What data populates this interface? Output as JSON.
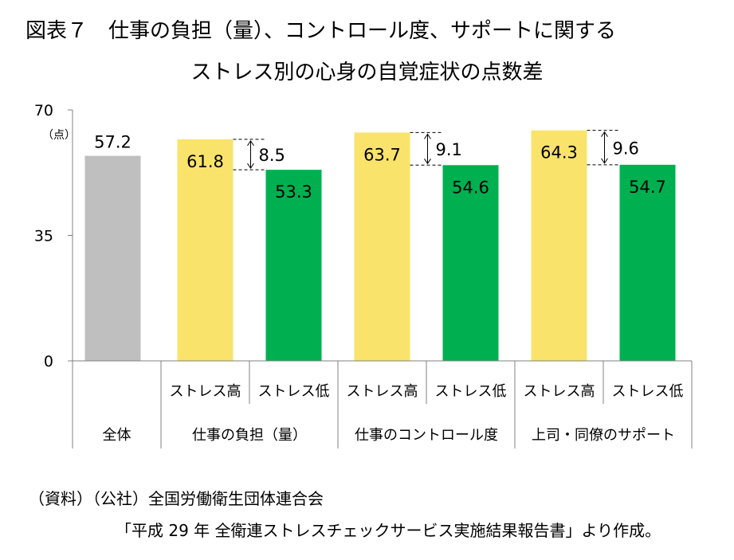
{
  "title_line1": "図表７　仕事の負担（量）、コントロール度、サポートに関する",
  "title_line2": "ストレス別の心身の自覚症状の点数差",
  "source_line1": "（資料）（公社）全国労働衛生団体連合会",
  "source_line2": "「平成 29 年  全衛連ストレスチェックサービス実施結果報告書」より作成。",
  "chart_data": {
    "type": "bar",
    "yunit": "（点）",
    "ylim": [
      0,
      70
    ],
    "yticks": [
      "0",
      "35",
      "70"
    ],
    "grid": false,
    "legend": "none",
    "bars": [
      {
        "group": "全体",
        "sub": "",
        "value": 57.2,
        "label": "57.2",
        "color": "#bfbfbf"
      },
      {
        "group": "仕事の負担（量）",
        "sub": "ストレス高",
        "value": 61.8,
        "label": "61.8",
        "color": "#fae36b"
      },
      {
        "group": "仕事の負担（量）",
        "sub": "ストレス低",
        "value": 53.3,
        "label": "53.3",
        "color": "#00b050"
      },
      {
        "group": "仕事のコントロール度",
        "sub": "ストレス高",
        "value": 63.7,
        "label": "63.7",
        "color": "#fae36b"
      },
      {
        "group": "仕事のコントロール度",
        "sub": "ストレス低",
        "value": 54.6,
        "label": "54.6",
        "color": "#00b050"
      },
      {
        "group": "上司・同僚のサポート",
        "sub": "ストレス高",
        "value": 64.3,
        "label": "64.3",
        "color": "#fae36b"
      },
      {
        "group": "上司・同僚のサポート",
        "sub": "ストレス低",
        "value": 54.7,
        "label": "54.7",
        "color": "#00b050"
      }
    ],
    "groups": [
      {
        "label": "全体",
        "span": 1
      },
      {
        "label": "仕事の負担（量）",
        "span": 2
      },
      {
        "label": "仕事のコントロール度",
        "span": 2
      },
      {
        "label": "上司・同僚のサポート",
        "span": 2
      }
    ],
    "differences": [
      {
        "high_bar": 1,
        "low_bar": 2,
        "value": 8.5,
        "label": "8.5"
      },
      {
        "high_bar": 3,
        "low_bar": 4,
        "value": 9.1,
        "label": "9.1"
      },
      {
        "high_bar": 5,
        "low_bar": 6,
        "value": 9.6,
        "label": "9.6"
      }
    ]
  }
}
